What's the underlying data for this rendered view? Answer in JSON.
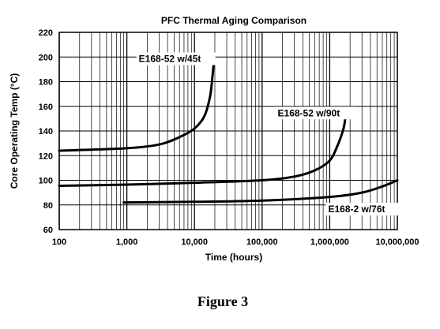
{
  "figure_caption": "Figure 3",
  "chart_data": {
    "type": "line",
    "title": "PFC Thermal Aging Comparison",
    "xlabel": "Time (hours)",
    "ylabel": "Core Operating Temp (°C)",
    "x_scale": "log",
    "xlim": [
      100,
      10000000
    ],
    "ylim": [
      60,
      220
    ],
    "x_ticks": [
      100,
      1000,
      10000,
      100000,
      1000000,
      10000000
    ],
    "x_tick_labels": [
      "100",
      "1,000",
      "10,000",
      "100,000",
      "1,000,000",
      "10,000,000"
    ],
    "y_ticks": [
      60,
      80,
      100,
      120,
      140,
      160,
      180,
      200,
      220
    ],
    "y_tick_labels": [
      "60",
      "80",
      "100",
      "120",
      "140",
      "160",
      "180",
      "200",
      "220"
    ],
    "grid": true,
    "series": [
      {
        "name": "E168-52 w/45t",
        "points": [
          [
            100,
            124
          ],
          [
            1000,
            126
          ],
          [
            3000,
            129
          ],
          [
            6000,
            135
          ],
          [
            10000,
            142
          ],
          [
            14000,
            152
          ],
          [
            17000,
            168
          ],
          [
            18500,
            185
          ],
          [
            19500,
            198
          ]
        ]
      },
      {
        "name": "E168-52 w/90t",
        "points": [
          [
            100,
            95.5
          ],
          [
            1000,
            96.5
          ],
          [
            10000,
            98
          ],
          [
            100000,
            100
          ],
          [
            300000,
            103
          ],
          [
            600000,
            108
          ],
          [
            1000000,
            116
          ],
          [
            1300000,
            128
          ],
          [
            1600000,
            142
          ],
          [
            1750000,
            155
          ]
        ]
      },
      {
        "name": "E168-2 w/76t",
        "points": [
          [
            900,
            82
          ],
          [
            10000,
            82.5
          ],
          [
            100000,
            83.5
          ],
          [
            1000000,
            86.5
          ],
          [
            3000000,
            90
          ],
          [
            6000000,
            95
          ],
          [
            10000000,
            100
          ]
        ]
      }
    ],
    "annotations": [
      {
        "text": "E168-52 w/45t",
        "x": 1500,
        "y": 196
      },
      {
        "text": "E168-52 w/90t",
        "x": 170000,
        "y": 152
      },
      {
        "text": "E168-2 w/76t",
        "x": 950000,
        "y": 74
      }
    ]
  }
}
